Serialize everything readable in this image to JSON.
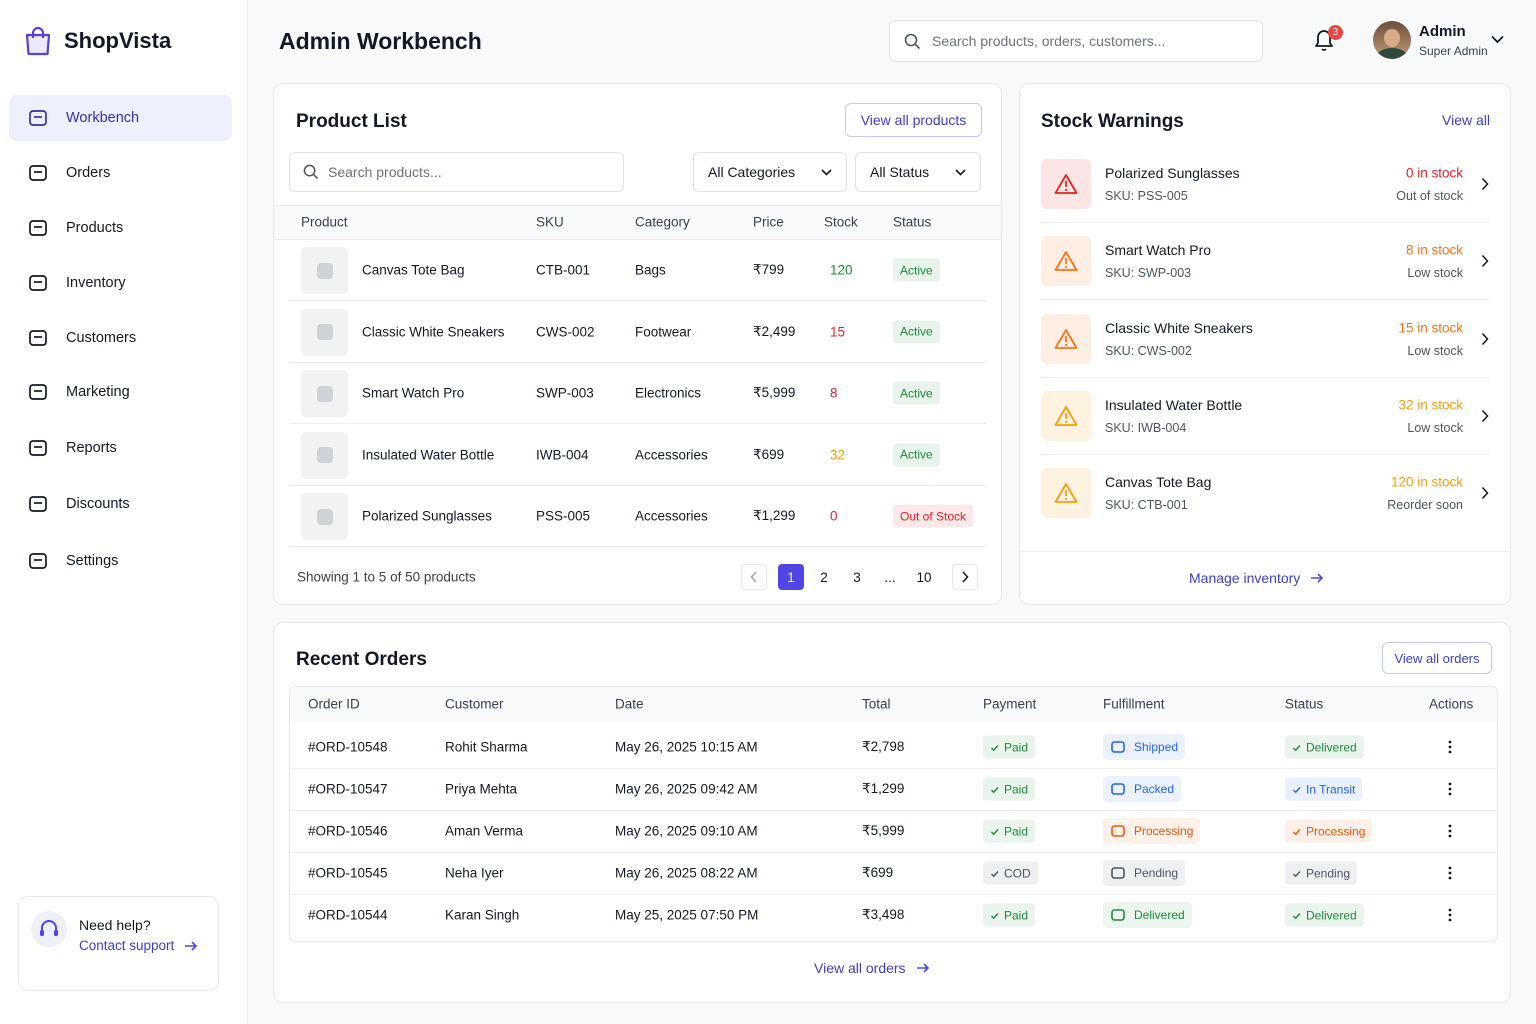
{
  "brand": "ShopVista",
  "nav": [
    {
      "label": "Workbench",
      "active": true
    },
    {
      "label": "Orders",
      "active": false
    },
    {
      "label": "Products",
      "active": false
    },
    {
      "label": "Inventory",
      "active": false
    },
    {
      "label": "Customers",
      "active": false
    },
    {
      "label": "Marketing",
      "active": false
    },
    {
      "label": "Reports",
      "active": false
    },
    {
      "label": "Discounts",
      "active": false
    },
    {
      "label": "Settings",
      "active": false
    }
  ],
  "help": {
    "title": "Need help?",
    "link": "Contact support"
  },
  "header": {
    "title": "Admin Workbench",
    "search_placeholder": "Search products, orders, customers...",
    "notification_count": 3,
    "user_name": "Admin",
    "user_role": "Super Admin"
  },
  "product_list": {
    "title": "Product List",
    "view_all": "View all products",
    "search_placeholder": "Search products...",
    "filters": [
      "All Categories",
      "All Status"
    ],
    "columns": [
      "Product",
      "SKU",
      "Category",
      "Price",
      "Stock",
      "Status"
    ],
    "rows": [
      {
        "name": "Canvas Tote Bag",
        "sku": "CTB-001",
        "category": "Bags",
        "price": "₹799",
        "stock": 120,
        "stock_color": "#1e8a3c",
        "status": "Active",
        "status_color": "#1e8a3c"
      },
      {
        "name": "Classic White Sneakers",
        "sku": "CWS-002",
        "category": "Footwear",
        "price": "₹2,499",
        "stock": 15,
        "stock_color": "#dc2626",
        "status": "Active",
        "status_color": "#1e8a3c"
      },
      {
        "name": "Smart Watch Pro",
        "sku": "SWP-003",
        "category": "Electronics",
        "price": "₹5,999",
        "stock": 8,
        "stock_color": "#dc2626",
        "status": "Active",
        "status_color": "#1e8a3c"
      },
      {
        "name": "Insulated Water Bottle",
        "sku": "IWB-004",
        "category": "Accessories",
        "price": "₹699",
        "stock": 32,
        "stock_color": "#f59e0b",
        "status": "Active",
        "status_color": "#1e8a3c"
      },
      {
        "name": "Polarized Sunglasses",
        "sku": "PSS-005",
        "category": "Accessories",
        "price": "₹1,299",
        "stock": 0,
        "stock_color": "#dc2626",
        "status": "Out of Stock",
        "status_color": "#dc2626"
      }
    ],
    "footer": "Showing 1 to 5 of 50 products",
    "pages": [
      1,
      2,
      3,
      "...",
      10
    ],
    "current_page": 1
  },
  "stock_warnings": {
    "title": "Stock Warnings",
    "view_all": "View all",
    "items": [
      {
        "name": "Polarized Sunglasses",
        "sku": "SKU: PSS-005",
        "stock": "0 in stock",
        "note": "Out of stock",
        "color": "#dc2626"
      },
      {
        "name": "Smart Watch Pro",
        "sku": "SKU: SWP-003",
        "stock": "8 in stock",
        "note": "Low stock",
        "color": "#f97316"
      },
      {
        "name": "Classic White Sneakers",
        "sku": "SKU: CWS-002",
        "stock": "15 in stock",
        "note": "Low stock",
        "color": "#f97316"
      },
      {
        "name": "Insulated Water Bottle",
        "sku": "SKU: IWB-004",
        "stock": "32 in stock",
        "note": "Low stock",
        "color": "#f59e0b"
      },
      {
        "name": "Canvas Tote Bag",
        "sku": "SKU: CTB-001",
        "stock": "120 in stock",
        "note": "Reorder soon",
        "color": "#f59e0b"
      }
    ],
    "footer": "Manage inventory"
  },
  "recent_orders": {
    "title": "Recent Orders",
    "view_all": "View all orders",
    "columns": [
      "Order ID",
      "Customer",
      "Date",
      "Total",
      "Payment",
      "Fulfillment",
      "Status",
      "Actions"
    ],
    "rows": [
      {
        "id": "#ORD-10548",
        "customer": "Rohit Sharma",
        "date": "May 26, 2025 10:15 AM",
        "total": "₹2,798",
        "payment": "Paid",
        "payment_color": "#1e8a3c",
        "fulfillment": "Shipped",
        "fulfillment_color": "#2563eb",
        "status": "Delivered",
        "status_color": "#1e8a3c"
      },
      {
        "id": "#ORD-10547",
        "customer": "Priya Mehta",
        "date": "May 26, 2025 09:42 AM",
        "total": "₹1,299",
        "payment": "Paid",
        "payment_color": "#1e8a3c",
        "fulfillment": "Packed",
        "fulfillment_color": "#2563eb",
        "status": "In Transit",
        "status_color": "#2563eb"
      },
      {
        "id": "#ORD-10546",
        "customer": "Aman Verma",
        "date": "May 26, 2025 09:10 AM",
        "total": "₹5,999",
        "payment": "Paid",
        "payment_color": "#1e8a3c",
        "fulfillment": "Processing",
        "fulfillment_color": "#ea580c",
        "status": "Processing",
        "status_color": "#ea580c"
      },
      {
        "id": "#ORD-10545",
        "customer": "Neha Iyer",
        "date": "May 26, 2025 08:22 AM",
        "total": "₹699",
        "payment": "COD",
        "payment_color": "#4b5563",
        "fulfillment": "Pending",
        "fulfillment_color": "#4b5563",
        "status": "Pending",
        "status_color": "#4b5563"
      },
      {
        "id": "#ORD-10544",
        "customer": "Karan Singh",
        "date": "May 25, 2025 07:50 PM",
        "total": "₹3,498",
        "payment": "Paid",
        "payment_color": "#1e8a3c",
        "fulfillment": "Delivered",
        "fulfillment_color": "#1e8a3c",
        "status": "Delivered",
        "status_color": "#1e8a3c"
      }
    ],
    "footer": "View all orders"
  }
}
